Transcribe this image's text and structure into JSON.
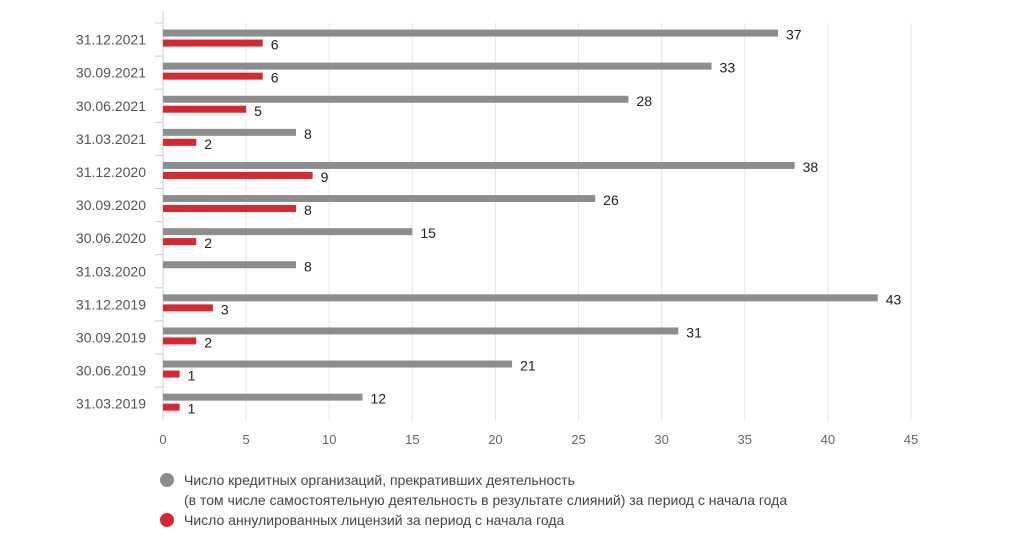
{
  "chart_data": {
    "type": "bar",
    "orientation": "horizontal",
    "categories": [
      "31.12.2021",
      "30.09.2021",
      "30.06.2021",
      "31.03.2021",
      "31.12.2020",
      "30.09.2020",
      "30.06.2020",
      "31.03.2020",
      "31.12.2019",
      "30.09.2019",
      "30.06.2019",
      "31.03.2019"
    ],
    "series": [
      {
        "name": "Число кредитных организаций, прекративших деятельность",
        "name_line2": "(в том числе самостоятельную деятельность в результате слияний) за период с начала года",
        "color": "#8c8d8f",
        "values": [
          37,
          33,
          28,
          8,
          38,
          26,
          15,
          8,
          43,
          31,
          21,
          12
        ]
      },
      {
        "name": "Число аннулированных лицензий за период с начала года",
        "color": "#d7282f",
        "values": [
          6,
          6,
          5,
          2,
          9,
          8,
          2,
          null,
          3,
          2,
          1,
          1
        ]
      }
    ],
    "xlim": [
      0,
      45
    ],
    "xticks": [
      "0",
      "5",
      "10",
      "15",
      "20",
      "25",
      "30",
      "35",
      "40",
      "45"
    ],
    "grid": true,
    "legend_position": "bottom-left"
  }
}
